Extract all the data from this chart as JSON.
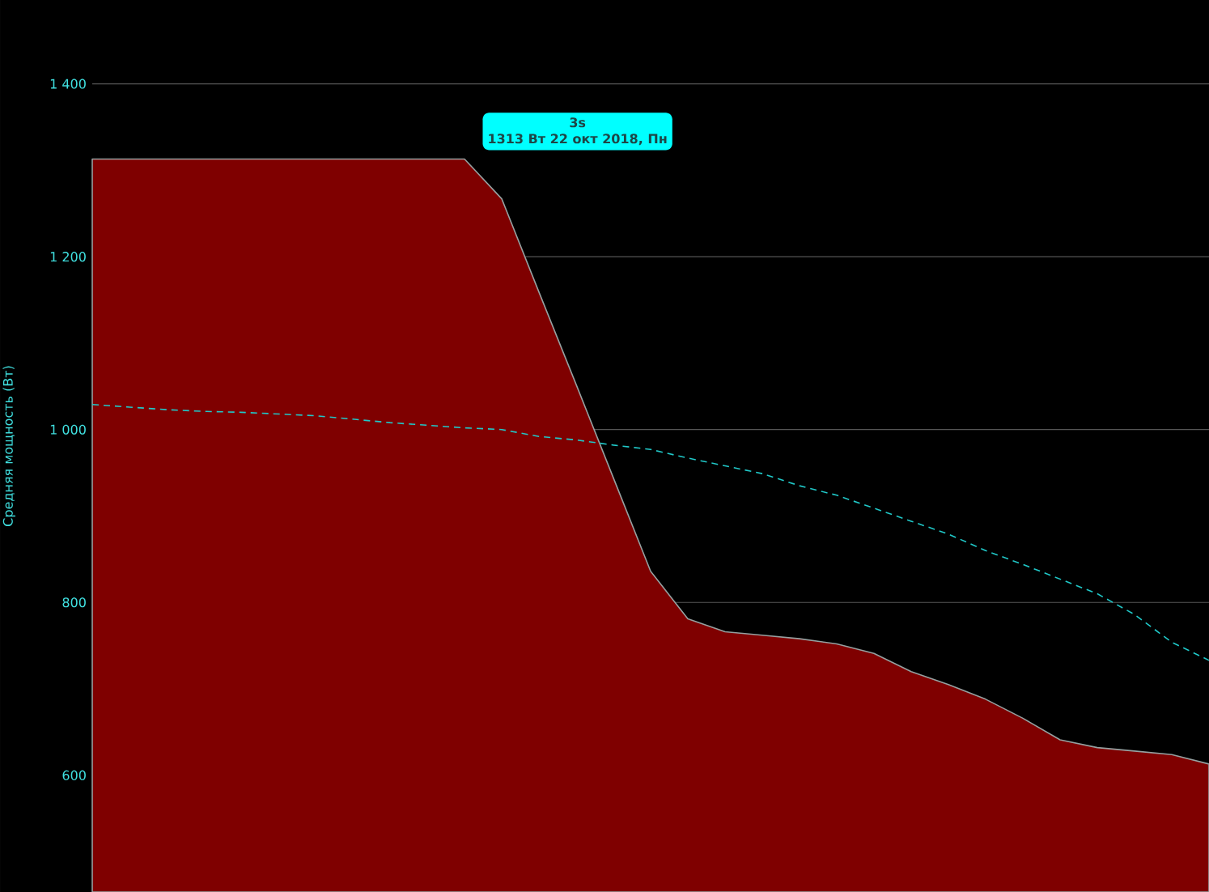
{
  "chart_data": {
    "type": "area",
    "ylabel": "Средняя мощность (Вт)",
    "categories": [
      null,
      null,
      null,
      null,
      null,
      null,
      null,
      null,
      null,
      null,
      null,
      null,
      null,
      null,
      null,
      null,
      null,
      null,
      null,
      null,
      null,
      null,
      null,
      null,
      null,
      null,
      null,
      null,
      null,
      null,
      null
    ],
    "series": [
      {
        "type": "area",
        "color": "#7f0000",
        "values": [
          1313,
          1313,
          1313,
          1313,
          1313,
          1313,
          1313,
          1313,
          1313,
          1313,
          1313,
          1267,
          1159,
          1052,
          944,
          836,
          781,
          766,
          762,
          758,
          752,
          741,
          720,
          705,
          688,
          666,
          641,
          632,
          628,
          624,
          613
        ]
      },
      {
        "type": "line",
        "color": "#20c8c8",
        "line_style": "dashed",
        "values": [
          1029,
          1026,
          1023,
          1021,
          1020,
          1018,
          1016,
          1012,
          1008,
          1005,
          1002,
          1000,
          992,
          988,
          982,
          977,
          967,
          958,
          949,
          935,
          924,
          909,
          894,
          879,
          860,
          844,
          827,
          810,
          786,
          754,
          733
        ]
      }
    ],
    "ylim": [
      465,
      1497
    ],
    "yticks": [
      {
        "value": 600,
        "label": "600"
      },
      {
        "value": 800,
        "label": "800"
      },
      {
        "value": 1000,
        "label": "1 000"
      },
      {
        "value": 1200,
        "label": "1 200"
      },
      {
        "value": 1400,
        "label": "1 400"
      }
    ],
    "grid": "y",
    "annotations": [
      "3s",
      "1313 Вт 22 окт 2018, Пн"
    ]
  }
}
